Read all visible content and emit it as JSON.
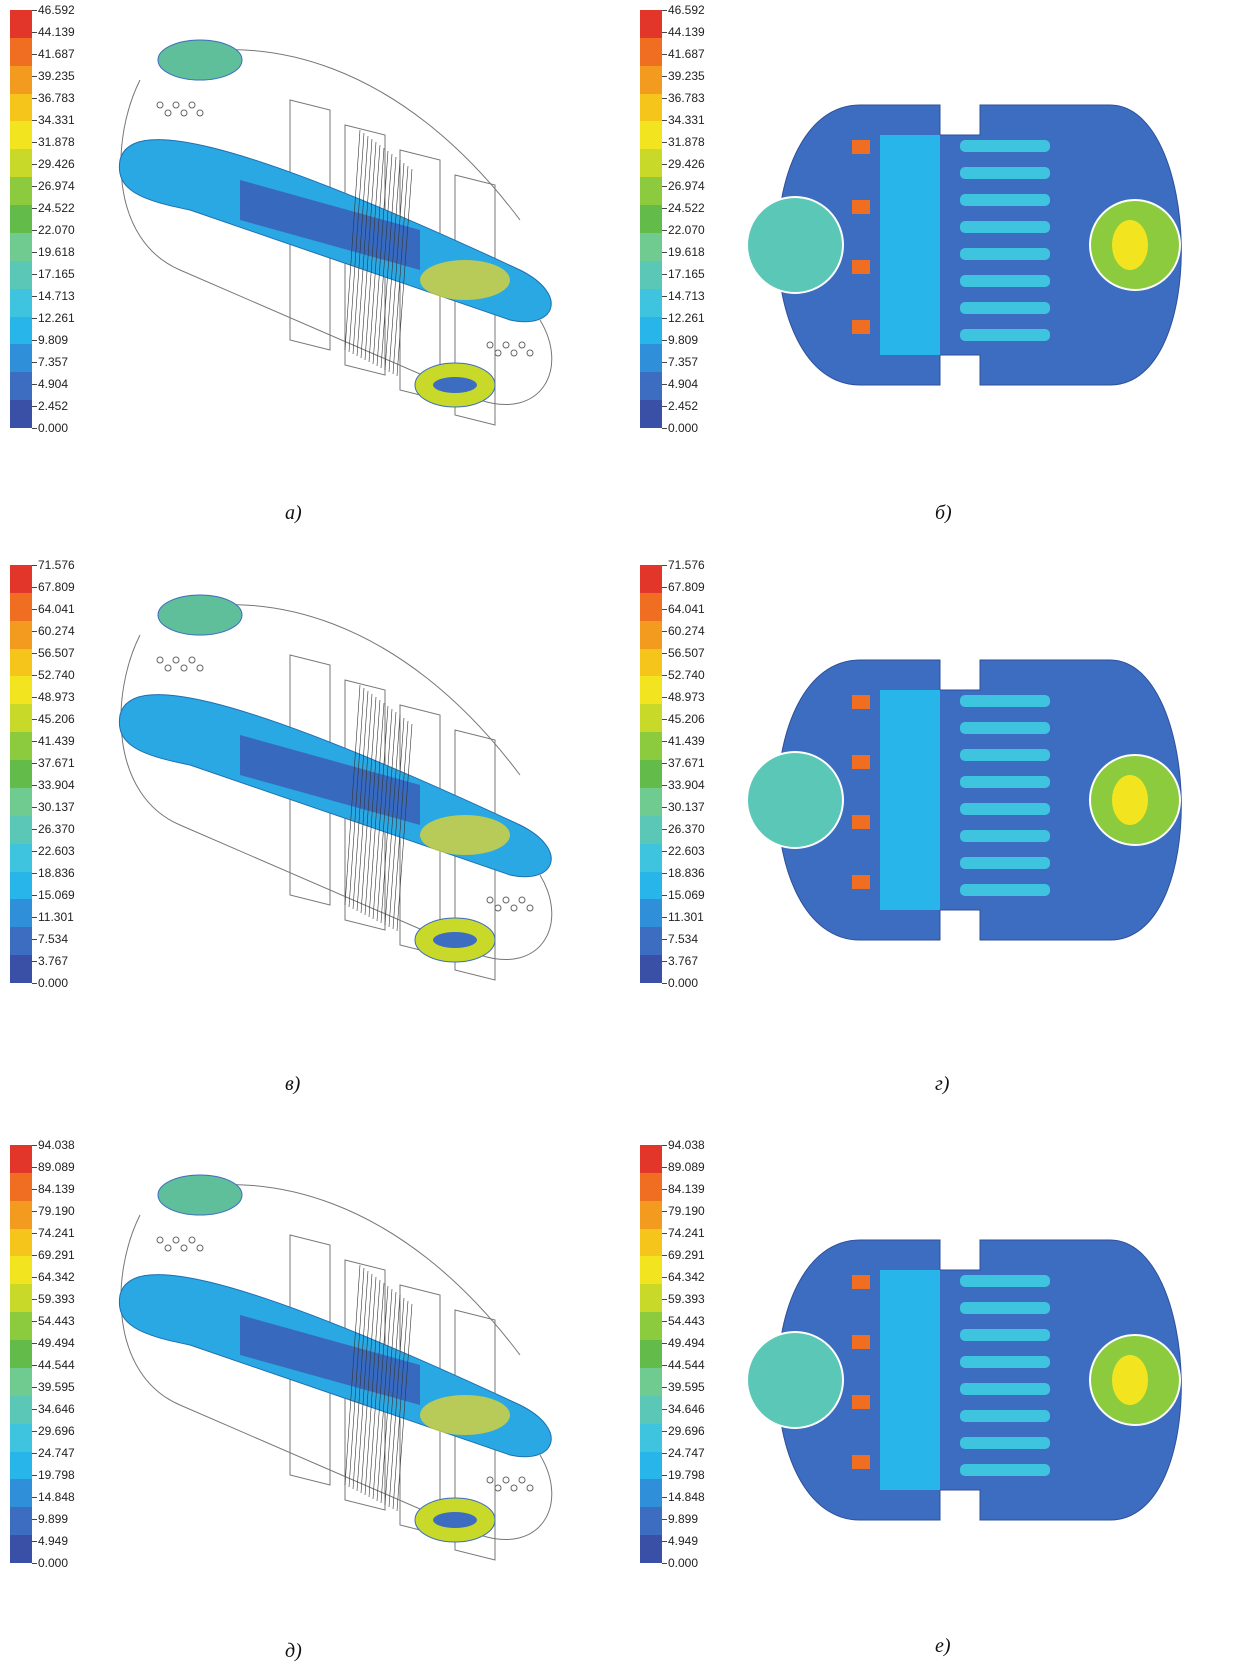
{
  "colors": [
    "#3a4fa6",
    "#3d6dc0",
    "#2f8fd8",
    "#27b5ea",
    "#3fc4e0",
    "#5bc7b6",
    "#6fcb8f",
    "#63bb4a",
    "#8ccb3d",
    "#c8d92a",
    "#f2e51f",
    "#f5c51c",
    "#f39b1f",
    "#ef6e22",
    "#e3362a"
  ],
  "panels": [
    {
      "caption": "а)",
      "labels": [
        "46.592",
        "44.139",
        "41.687",
        "39.235",
        "36.783",
        "34.331",
        "31.878",
        "29.426",
        "26.974",
        "24.522",
        "22.070",
        "19.618",
        "17.165",
        "14.713",
        "12.261",
        "9.809",
        "7.357",
        "4.904",
        "2.452",
        "0.000"
      ]
    },
    {
      "caption": "б)",
      "labels": [
        "46.592",
        "44.139",
        "41.687",
        "39.235",
        "36.783",
        "34.331",
        "31.878",
        "29.426",
        "26.974",
        "24.522",
        "22.070",
        "19.618",
        "17.165",
        "14.713",
        "12.261",
        "9.809",
        "7.357",
        "4.904",
        "2.452",
        "0.000"
      ]
    },
    {
      "caption": "в)",
      "labels": [
        "71.576",
        "67.809",
        "64.041",
        "60.274",
        "56.507",
        "52.740",
        "48.973",
        "45.206",
        "41.439",
        "37.671",
        "33.904",
        "30.137",
        "26.370",
        "22.603",
        "18.836",
        "15.069",
        "11.301",
        "7.534",
        "3.767",
        "0.000"
      ]
    },
    {
      "caption": "г)",
      "labels": [
        "71.576",
        "67.809",
        "64.041",
        "60.274",
        "56.507",
        "52.740",
        "48.973",
        "45.206",
        "41.439",
        "37.671",
        "33.904",
        "30.137",
        "26.370",
        "22.603",
        "18.836",
        "15.069",
        "11.301",
        "7.534",
        "3.767",
        "0.000"
      ]
    },
    {
      "caption": "д)",
      "labels": [
        "94.038",
        "89.089",
        "84.139",
        "79.190",
        "74.241",
        "69.291",
        "64.342",
        "59.393",
        "54.443",
        "49.494",
        "44.544",
        "39.595",
        "34.646",
        "29.696",
        "24.747",
        "19.798",
        "14.848",
        "9.899",
        "4.949",
        "0.000"
      ]
    },
    {
      "caption": "е)",
      "labels": [
        "94.038",
        "89.089",
        "84.139",
        "79.190",
        "74.241",
        "69.291",
        "64.342",
        "59.393",
        "54.443",
        "49.494",
        "44.544",
        "39.595",
        "34.646",
        "29.696",
        "24.747",
        "19.798",
        "14.848",
        "9.899",
        "4.949",
        "0.000"
      ]
    }
  ]
}
